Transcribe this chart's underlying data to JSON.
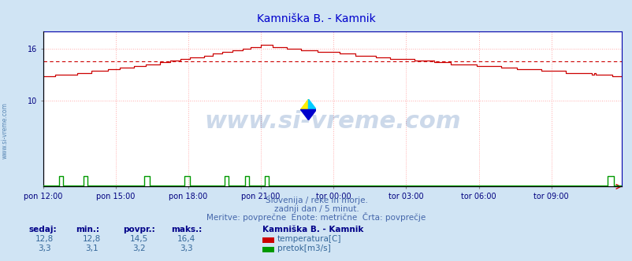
{
  "title": "Kamniška B. - Kamnik",
  "title_color": "#0000cc",
  "bg_color": "#d0e4f4",
  "plot_bg_color": "#ffffff",
  "grid_color": "#ffaaaa",
  "border_color": "#0000ff",
  "xtick_labels": [
    "pon 12:00",
    "pon 15:00",
    "pon 18:00",
    "pon 21:00",
    "tor 00:00",
    "tor 03:00",
    "tor 06:00",
    "tor 09:00"
  ],
  "xtick_positions": [
    0,
    36,
    72,
    108,
    144,
    180,
    216,
    252
  ],
  "yticks": [
    10,
    16
  ],
  "ytick_labels": [
    "10",
    "16"
  ],
  "ylim": [
    0,
    18
  ],
  "xlim": [
    0,
    287
  ],
  "avg_temp": 14.5,
  "temp_color": "#cc0000",
  "flow_color": "#009900",
  "avg_line_color": "#cc0000",
  "watermark": "www.si-vreme.com",
  "watermark_color": "#1a52a0",
  "left_label": "www.si-vreme.com",
  "left_label_color": "#4477aa",
  "subtitle1": "Slovenija / reke in morje.",
  "subtitle2": "zadnji dan / 5 minut.",
  "subtitle3": "Meritve: povprečne  Enote: metrične  Črta: povprečje",
  "subtitle_color": "#4466aa",
  "legend_title": "Kamniška B. - Kamnik",
  "legend_title_color": "#000088",
  "label_temp": "temperatura[C]",
  "label_flow": "pretok[m3/s]",
  "label_color": "#336699",
  "stats_headers": [
    "sedaj:",
    "min.:",
    "povpr.:",
    "maks.:"
  ],
  "stats_temp": [
    "12,8",
    "12,8",
    "14,5",
    "16,4"
  ],
  "stats_flow": [
    "3,3",
    "3,1",
    "3,2",
    "3,3"
  ],
  "n_points": 289,
  "temp_start": 12.8,
  "temp_peak": 16.4,
  "temp_peak_idx": 110,
  "temp_end": 12.8,
  "flow_base": 0.3,
  "flow_spike_indices": [
    8,
    9,
    20,
    21,
    50,
    51,
    52,
    70,
    71,
    72,
    90,
    91,
    100,
    101,
    110,
    111,
    280,
    281,
    282
  ],
  "flow_spike_val": 1.2
}
